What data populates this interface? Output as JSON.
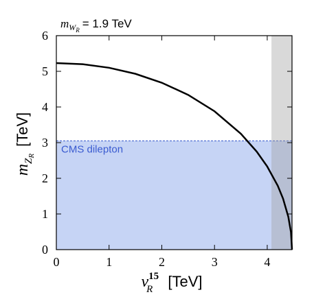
{
  "chart_data": {
    "type": "line",
    "title": {
      "symbol": "m",
      "sub": "W",
      "subsub": "R",
      "text": "= 1.9 TeV"
    },
    "x_label": {
      "symbol": "v",
      "sup": "15",
      "sub": "R",
      "unit": "[TeV]"
    },
    "y_label": {
      "symbol": "m",
      "sub": "Z",
      "subsub": "R",
      "unit": "[TeV]"
    },
    "x": [
      0,
      0.5,
      1,
      1.5,
      2,
      2.5,
      3,
      3.5,
      3.8,
      4,
      4.2,
      4.3,
      4.4,
      4.45,
      4.47
    ],
    "series": [
      {
        "color": "#000000",
        "values": [
          5.23,
          5.2,
          5.1,
          4.93,
          4.68,
          4.34,
          3.88,
          3.25,
          2.75,
          2.33,
          1.79,
          1.43,
          0.92,
          0.49,
          0
        ]
      }
    ],
    "regions": [
      {
        "label": "CMS dilepton",
        "color": "#c6d4f5",
        "ylim": [
          0,
          3.05
        ]
      },
      {
        "color": "#a0a0a0",
        "xlim": [
          4.08,
          4.47
        ]
      }
    ],
    "xlim": [
      0,
      4.47
    ],
    "ylim": [
      0,
      6
    ],
    "xticks": [
      0,
      1,
      2,
      3,
      4
    ],
    "yticks": [
      0,
      1,
      2,
      3,
      4,
      5,
      6
    ]
  }
}
